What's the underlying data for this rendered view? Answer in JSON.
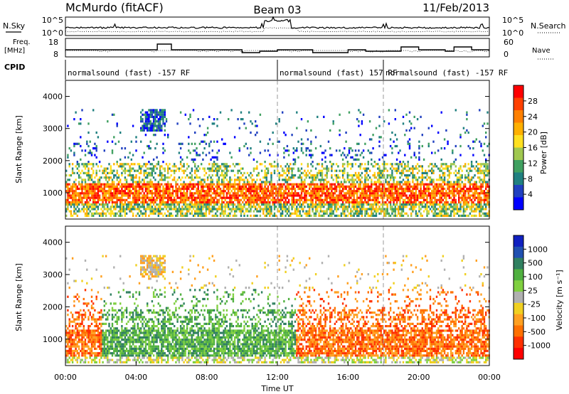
{
  "header": {
    "station": "McMurdo (fitACF)",
    "beam": "Beam 03",
    "date": "11/Feb/2013"
  },
  "noise_panel": {
    "left_label": "N.Sky",
    "right_label": "N.Search",
    "left_ticks": [
      "10^5",
      "10^0"
    ],
    "right_ticks": [
      "10^5",
      "10^0"
    ]
  },
  "freq_panel": {
    "left_label_1": "Freq.",
    "left_label_2": "[MHz]",
    "right_label": "Nave",
    "left_ticks": [
      "18",
      "8"
    ],
    "right_ticks": [
      "60",
      "0"
    ]
  },
  "cpid": {
    "label": "CPID",
    "segments": [
      {
        "start": 0,
        "text": "normalsound (fast) -157 RF"
      },
      {
        "start": 12,
        "text": "normalsound (fast) 157 RF"
      },
      {
        "start": 18,
        "text": "normalsound (fast) -157 RF"
      }
    ]
  },
  "chart_data": [
    {
      "type": "heatmap",
      "name": "power",
      "ylabel": "Slant Range [km]",
      "xlim": [
        0,
        24
      ],
      "ylim": [
        180,
        4500
      ],
      "yticks": [
        "1000",
        "2000",
        "3000",
        "4000"
      ],
      "colorbar": {
        "label": "Power [dB]",
        "ticks": [
          "28",
          "24",
          "20",
          "16",
          "12",
          "8",
          "4"
        ],
        "colors": [
          "#ff0000",
          "#ff4000",
          "#ff8000",
          "#ffb000",
          "#ffe020",
          "#a0c850",
          "#40a060",
          "#208080",
          "#2040c0",
          "#0000ff"
        ]
      }
    },
    {
      "type": "heatmap",
      "name": "velocity",
      "ylabel": "Slant Range [km]",
      "xlabel": "Time UT",
      "xlim": [
        0,
        24
      ],
      "ylim": [
        180,
        4500
      ],
      "xticks": [
        "00:00",
        "04:00",
        "08:00",
        "12:00",
        "16:00",
        "20:00",
        "00:00"
      ],
      "yticks": [
        "1000",
        "2000",
        "3000",
        "4000"
      ],
      "colorbar": {
        "label": "Velocity [m s⁻¹]",
        "ticks": [
          "1000",
          "500",
          "100",
          "25",
          "-25",
          "-100",
          "-500",
          "-1000"
        ],
        "colors": [
          "#1020c0",
          "#2050b0",
          "#308060",
          "#50b040",
          "#80d040",
          "#b0b0b0",
          "#f0d020",
          "#ffa020",
          "#ff7000",
          "#ff3000",
          "#ff0000"
        ]
      }
    }
  ]
}
